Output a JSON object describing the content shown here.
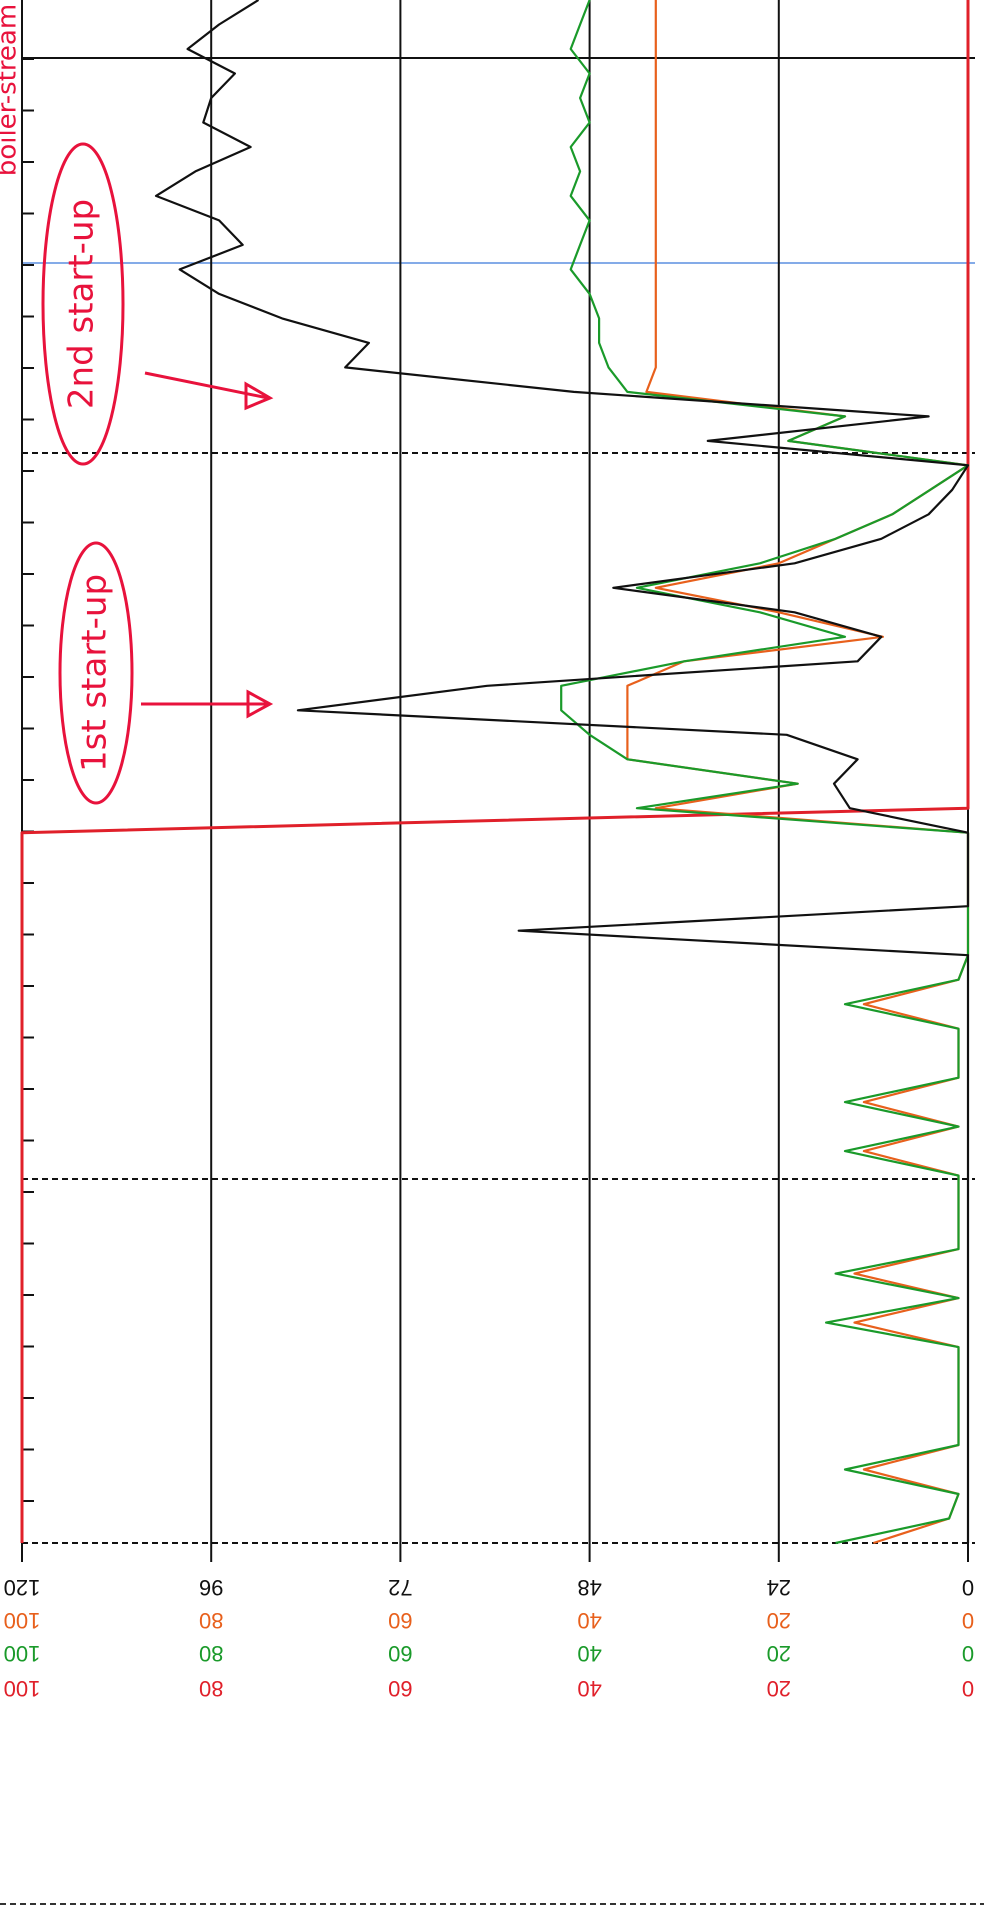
{
  "chart_data": {
    "type": "line",
    "axes": [
      {
        "color": "#111111",
        "lim": [
          0,
          120
        ],
        "ticks": [
          0,
          24,
          48,
          72,
          96,
          120
        ]
      },
      {
        "color": "#e8601c",
        "lim": [
          0,
          100
        ],
        "ticks": [
          0,
          20,
          40,
          60,
          80,
          100
        ]
      },
      {
        "color": "#1a9a2a",
        "lim": [
          0,
          100
        ],
        "ticks": [
          0,
          20,
          40,
          60,
          80,
          100
        ]
      },
      {
        "color": "#e0202a",
        "lim": [
          0,
          100
        ],
        "ticks": [
          0,
          20,
          40,
          60,
          80,
          100
        ]
      }
    ],
    "grid": true,
    "series": [
      {
        "color": "#e0202a",
        "axis": 3,
        "values": [
          100,
          100,
          100,
          100,
          100,
          100,
          100,
          100,
          100,
          100,
          100,
          100,
          100,
          100,
          100,
          100,
          100,
          100,
          100,
          100,
          100,
          100,
          100,
          100,
          100,
          100,
          100,
          100,
          100,
          100,
          0,
          0,
          0,
          0,
          0,
          0,
          0,
          0,
          0,
          0,
          0,
          0,
          0,
          0,
          0,
          0,
          0,
          0,
          0,
          0,
          0,
          0,
          0,
          0,
          0,
          0,
          0,
          0,
          0,
          0,
          0,
          0,
          0,
          0
        ]
      },
      {
        "color": "#e8601c",
        "axis": 1,
        "values": [
          10,
          2,
          1,
          11,
          1,
          1,
          1,
          1,
          1,
          12,
          1,
          12,
          1,
          1,
          1,
          1,
          11,
          1,
          11,
          1,
          1,
          1,
          11,
          1,
          0,
          0,
          0,
          0,
          0,
          0,
          33,
          18,
          36,
          36,
          36,
          36,
          30,
          9,
          20,
          33,
          20,
          14,
          8,
          4,
          0,
          19,
          13,
          34,
          33,
          33,
          33,
          33,
          33,
          33,
          33,
          33,
          33,
          33,
          33,
          33,
          33,
          33,
          33,
          33
        ]
      },
      {
        "color": "#1a9a2a",
        "axis": 2,
        "values": [
          14,
          2,
          1,
          13,
          1,
          1,
          1,
          1,
          1,
          15,
          1,
          14,
          1,
          1,
          1,
          1,
          13,
          1,
          13,
          1,
          1,
          1,
          13,
          1,
          0,
          0,
          0,
          0,
          0,
          0,
          35,
          18,
          36,
          40,
          43,
          43,
          30,
          13,
          22,
          35,
          22,
          14,
          8,
          4,
          0,
          19,
          13,
          36,
          38,
          39,
          39,
          40,
          42,
          41,
          40,
          42,
          41,
          42,
          40,
          41,
          40,
          42,
          41,
          40
        ]
      },
      {
        "color": "#111111",
        "axis": 0,
        "values": [
          0,
          0,
          0,
          0,
          0,
          0,
          0,
          0,
          0,
          0,
          0,
          0,
          0,
          0,
          0,
          0,
          0,
          0,
          0,
          0,
          0,
          0,
          0,
          0,
          0,
          57,
          0,
          0,
          0,
          0,
          15,
          17,
          14,
          23,
          85,
          61,
          14,
          11,
          22,
          45,
          22,
          11,
          5,
          2,
          0,
          33,
          5,
          50,
          79,
          76,
          87,
          95,
          100,
          92,
          95,
          103,
          98,
          91,
          97,
          96,
          93,
          99,
          95,
          90
        ]
      }
    ],
    "annotations": [
      "1st start-up",
      "2nd start-up",
      "boiler-stream"
    ]
  }
}
